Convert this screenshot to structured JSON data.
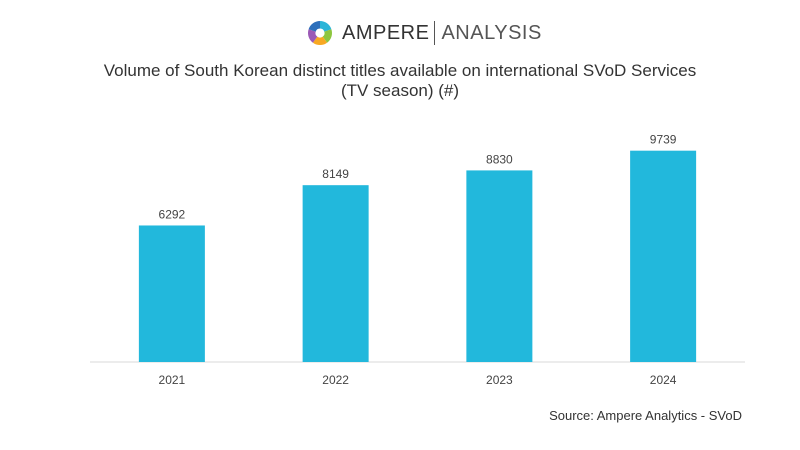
{
  "logo": {
    "word_primary": "AMPERE",
    "word_secondary": "ANALYSIS",
    "colors": [
      "#2cb5d8",
      "#8dc63f",
      "#f7a823",
      "#9b59b6",
      "#2c6fbb"
    ]
  },
  "title_line1": "Volume of South Korean distinct titles available on international SVoD Services",
  "title_line2": "(TV season) (#)",
  "source": "Source: Ampere Analytics - SVoD",
  "chart_data": {
    "type": "bar",
    "categories": [
      "2021",
      "2022",
      "2023",
      "2024"
    ],
    "values": [
      6292,
      8149,
      8830,
      9739
    ],
    "data_labels": [
      "6292",
      "8149",
      "8830",
      "9739"
    ],
    "ylim": [
      0,
      11000
    ],
    "bar_color": "#22b8dc",
    "grid": false,
    "legend": "none"
  }
}
